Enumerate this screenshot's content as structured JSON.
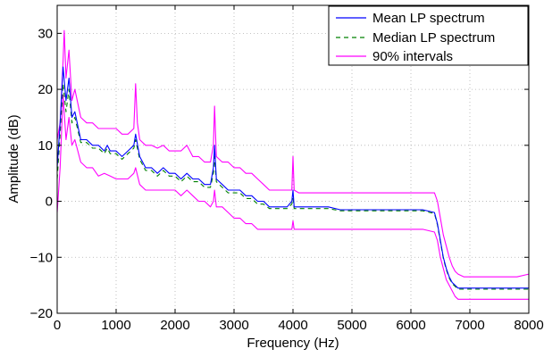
{
  "chart_data": {
    "type": "line",
    "title": "",
    "xlabel": "Frequency (Hz)",
    "ylabel": "Amplitude (dB)",
    "xlim": [
      0,
      8000
    ],
    "ylim": [
      -20,
      35
    ],
    "xticks": [
      0,
      1000,
      2000,
      3000,
      4000,
      5000,
      6000,
      7000,
      8000
    ],
    "xtick_labels": [
      "0",
      "1000",
      "2000",
      "3000",
      "4000",
      "5000",
      "6000",
      "7000",
      "8000"
    ],
    "yticks": [
      -20,
      -10,
      0,
      10,
      20,
      30
    ],
    "ytick_labels": [
      "−20",
      "−10",
      "0",
      "10",
      "20",
      "30"
    ],
    "grid": true,
    "legend_position": "top-right",
    "series": [
      {
        "name": "Mean LP spectrum",
        "color": "#0000ff",
        "style": "solid",
        "x": [
          0,
          50,
          100,
          150,
          200,
          250,
          300,
          400,
          500,
          600,
          700,
          800,
          850,
          900,
          1000,
          1100,
          1200,
          1300,
          1330,
          1400,
          1500,
          1600,
          1700,
          1800,
          1900,
          2000,
          2100,
          2200,
          2300,
          2400,
          2500,
          2600,
          2650,
          2670,
          2700,
          2800,
          2900,
          3000,
          3100,
          3200,
          3300,
          3400,
          3500,
          3600,
          3700,
          3800,
          3900,
          3980,
          4000,
          4020,
          4100,
          4200,
          4300,
          4400,
          4500,
          4600,
          4800,
          5000,
          5200,
          5400,
          5600,
          5800,
          6000,
          6200,
          6400,
          6450,
          6500,
          6550,
          6600,
          6650,
          6700,
          6750,
          6800,
          6900,
          7000,
          7200,
          7400,
          7600,
          7800,
          8000
        ],
        "y": [
          6,
          14,
          24,
          18,
          22,
          15,
          16,
          11,
          11,
          10,
          10,
          9,
          10,
          9,
          9,
          8,
          9,
          10,
          12,
          8,
          6,
          6,
          5,
          6,
          5,
          5,
          4,
          5,
          4,
          4,
          3,
          3,
          6,
          10,
          4,
          3,
          2,
          2,
          2,
          1,
          1,
          0,
          0,
          -1,
          -1,
          -1,
          -1,
          0,
          2,
          -1,
          -1,
          -1,
          -1,
          -1,
          -1,
          -1,
          -1.5,
          -1.5,
          -1.5,
          -1.5,
          -1.5,
          -1.5,
          -1.5,
          -1.5,
          -2,
          -4,
          -7,
          -10,
          -12,
          -13.5,
          -14.5,
          -15,
          -15.5,
          -15.5,
          -15.5,
          -15.5,
          -15.5,
          -15.5,
          -15.5,
          -15.5
        ]
      },
      {
        "name": "Median LP spectrum",
        "color": "#008000",
        "style": "dashed",
        "x": [
          0,
          50,
          100,
          150,
          200,
          250,
          300,
          400,
          500,
          600,
          700,
          800,
          850,
          900,
          1000,
          1100,
          1200,
          1300,
          1330,
          1400,
          1500,
          1600,
          1700,
          1800,
          1900,
          2000,
          2100,
          2200,
          2300,
          2400,
          2500,
          2600,
          2650,
          2670,
          2700,
          2800,
          2900,
          3000,
          3100,
          3200,
          3300,
          3400,
          3500,
          3600,
          3700,
          3800,
          3900,
          3980,
          4000,
          4020,
          4100,
          4200,
          4300,
          4400,
          4500,
          4600,
          4800,
          5000,
          5200,
          5400,
          5600,
          5800,
          6000,
          6200,
          6400,
          6450,
          6500,
          6550,
          6600,
          6650,
          6700,
          6750,
          6800,
          6900,
          7000,
          7200,
          7400,
          7600,
          7800,
          8000
        ],
        "y": [
          4,
          12,
          21,
          16,
          20,
          14,
          15,
          10.5,
          10.5,
          9.5,
          9.5,
          8.5,
          9.5,
          8.5,
          8.5,
          7.5,
          8.5,
          9.5,
          11,
          7.5,
          5.5,
          5.5,
          4.5,
          5.5,
          4.5,
          4.5,
          3.5,
          4.5,
          3.5,
          3.5,
          2.5,
          2.5,
          5,
          8,
          3.5,
          2.5,
          1.5,
          1.5,
          1.5,
          0.5,
          0.5,
          -0.5,
          -0.5,
          -1.3,
          -1.3,
          -1.3,
          -1.3,
          -0.5,
          0.5,
          -1.3,
          -1.3,
          -1.3,
          -1.3,
          -1.3,
          -1.3,
          -1.3,
          -1.7,
          -1.7,
          -1.7,
          -1.7,
          -1.7,
          -1.7,
          -1.7,
          -1.7,
          -2.2,
          -4.2,
          -7.2,
          -10.2,
          -12.2,
          -13.7,
          -14.7,
          -15.2,
          -15.7,
          -15.7,
          -15.7,
          -15.7,
          -15.7,
          -15.7,
          -15.7,
          -15.7
        ]
      },
      {
        "name": "90% intervals",
        "color": "#ff00ff",
        "style": "solid",
        "x": [
          0,
          50,
          100,
          120,
          150,
          200,
          250,
          300,
          400,
          500,
          600,
          700,
          800,
          900,
          1000,
          1100,
          1200,
          1300,
          1330,
          1360,
          1400,
          1500,
          1600,
          1700,
          1800,
          1900,
          2000,
          2100,
          2200,
          2300,
          2400,
          2500,
          2600,
          2650,
          2670,
          2700,
          2800,
          2900,
          3000,
          3100,
          3200,
          3300,
          3400,
          3500,
          3600,
          3700,
          3800,
          3900,
          3980,
          4000,
          4020,
          4100,
          4200,
          4400,
          4600,
          4800,
          5000,
          5200,
          5400,
          5600,
          5800,
          6000,
          6200,
          6400,
          6450,
          6500,
          6550,
          6600,
          6650,
          6700,
          6750,
          6800,
          6900,
          7000,
          7200,
          7400,
          7600,
          7800,
          8000
        ],
        "y": [
          11,
          14,
          25,
          30.5,
          22,
          27,
          18,
          20,
          15,
          14,
          14,
          13,
          13,
          13,
          13,
          12,
          12,
          13,
          21,
          14,
          11,
          10,
          10,
          9.5,
          10,
          9,
          9,
          9,
          10,
          8,
          8,
          7,
          7,
          10,
          17,
          8,
          7,
          7,
          6,
          6,
          5,
          5,
          4,
          3,
          2,
          2,
          2,
          2,
          2,
          8,
          2,
          1.5,
          1.5,
          1.5,
          1.5,
          1.5,
          1.5,
          1.5,
          1.5,
          1.5,
          1.5,
          1.5,
          1.5,
          1.5,
          0,
          -3,
          -6,
          -8,
          -10,
          -11.5,
          -12.5,
          -13,
          -13.5,
          -13.5,
          -13.5,
          -13.5,
          -13.5,
          -13.5,
          -13
        ]
      },
      {
        "name": "",
        "color": "#ff00ff",
        "style": "solid",
        "x": [
          0,
          50,
          100,
          150,
          200,
          250,
          300,
          400,
          500,
          600,
          700,
          800,
          900,
          1000,
          1100,
          1200,
          1300,
          1330,
          1400,
          1500,
          1600,
          1700,
          1800,
          1900,
          2000,
          2100,
          2200,
          2300,
          2400,
          2500,
          2600,
          2650,
          2670,
          2700,
          2800,
          2900,
          3000,
          3100,
          3200,
          3300,
          3400,
          3500,
          3600,
          3700,
          3800,
          3900,
          3980,
          4000,
          4020,
          4100,
          4200,
          4400,
          4600,
          4800,
          5000,
          5200,
          5400,
          5600,
          5800,
          6000,
          6200,
          6400,
          6450,
          6500,
          6550,
          6600,
          6650,
          6700,
          6750,
          6800,
          6900,
          7000,
          7200,
          7400,
          7600,
          7800,
          8000
        ],
        "y": [
          -2,
          6,
          19,
          11,
          15,
          10,
          11,
          7,
          6,
          6,
          4.5,
          5,
          4.5,
          4,
          4,
          4,
          5,
          6,
          3,
          2,
          2,
          2,
          2,
          2,
          2,
          1,
          2,
          1,
          0,
          0,
          -1,
          0,
          2,
          -1,
          -1,
          -2,
          -3,
          -3,
          -4,
          -4,
          -5,
          -5,
          -5,
          -5,
          -5,
          -5,
          -5,
          -3.5,
          -5,
          -5,
          -5,
          -5,
          -5,
          -5,
          -5,
          -5,
          -5,
          -5,
          -5,
          -5,
          -5,
          -5.5,
          -7,
          -10,
          -12,
          -14,
          -15,
          -16,
          -17,
          -17.5,
          -17.5,
          -17.5,
          -17.5,
          -17.5,
          -17.5,
          -17.5,
          -17.5
        ]
      }
    ]
  }
}
